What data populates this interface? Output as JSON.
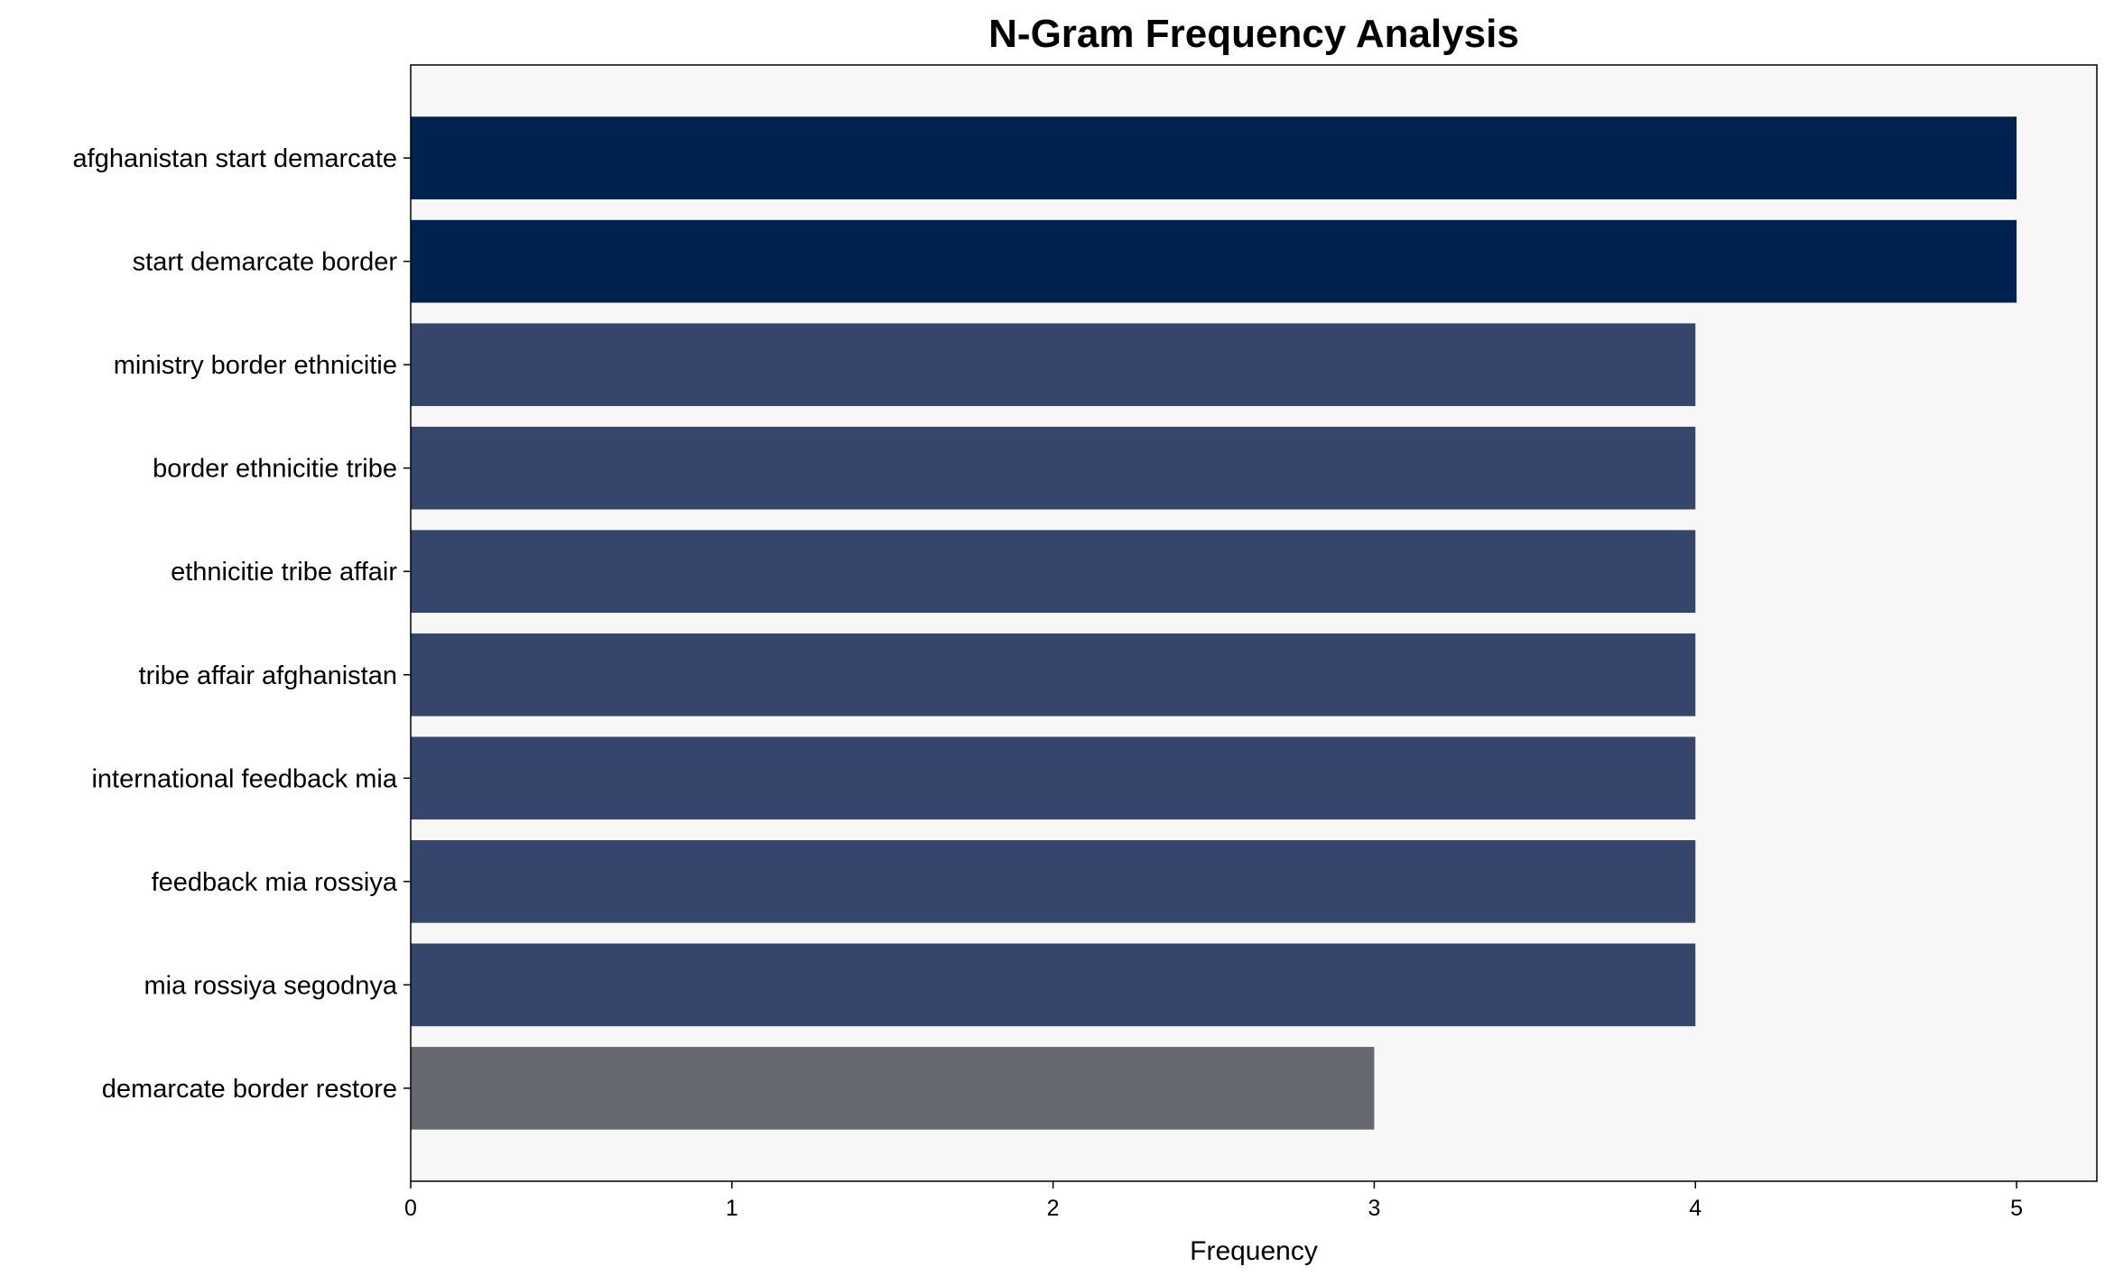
{
  "chart_data": {
    "type": "bar",
    "orientation": "horizontal",
    "title": "N-Gram Frequency Analysis",
    "xlabel": "Frequency",
    "ylabel": "",
    "categories": [
      "afghanistan start demarcate",
      "start demarcate border",
      "ministry border ethnicitie",
      "border ethnicitie tribe",
      "ethnicitie tribe affair",
      "tribe affair afghanistan",
      "international feedback mia",
      "feedback mia rossiya",
      "mia rossiya segodnya",
      "demarcate border restore"
    ],
    "values": [
      5,
      5,
      4,
      4,
      4,
      4,
      4,
      4,
      4,
      3
    ],
    "colors": [
      "#00224e",
      "#00224e",
      "#35456c",
      "#35456c",
      "#35456c",
      "#35456c",
      "#35456c",
      "#35456c",
      "#35456c",
      "#666970"
    ],
    "xlim": [
      0,
      5.25
    ],
    "xticks": [
      "0",
      "1",
      "2",
      "3",
      "4",
      "5"
    ],
    "grid": false,
    "background": "#f7f7f7"
  }
}
